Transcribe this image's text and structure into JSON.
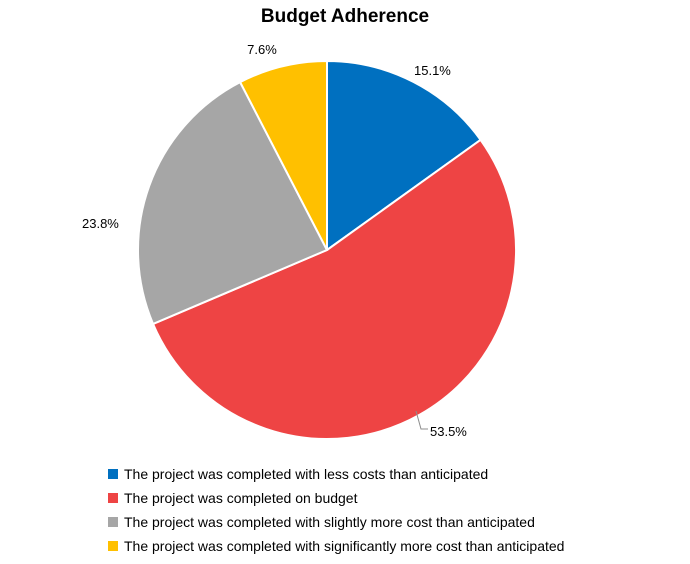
{
  "chart_data": {
    "type": "pie",
    "title": "Budget Adherence",
    "categories": [
      "The project was completed with less costs than anticipated",
      "The project was completed on budget",
      "The project was completed with slightly more cost than anticipated",
      "The project was completed with significantly more cost than anticipated"
    ],
    "values": [
      15.1,
      53.5,
      23.8,
      7.6
    ],
    "data_labels": [
      "15.1%",
      "53.5%",
      "23.8%",
      "7.6%"
    ],
    "colors": [
      "#0070C0",
      "#EE4444",
      "#A6A6A6",
      "#FFC000"
    ],
    "start_angle": "12 o'clock, clockwise",
    "legend_position": "bottom"
  }
}
